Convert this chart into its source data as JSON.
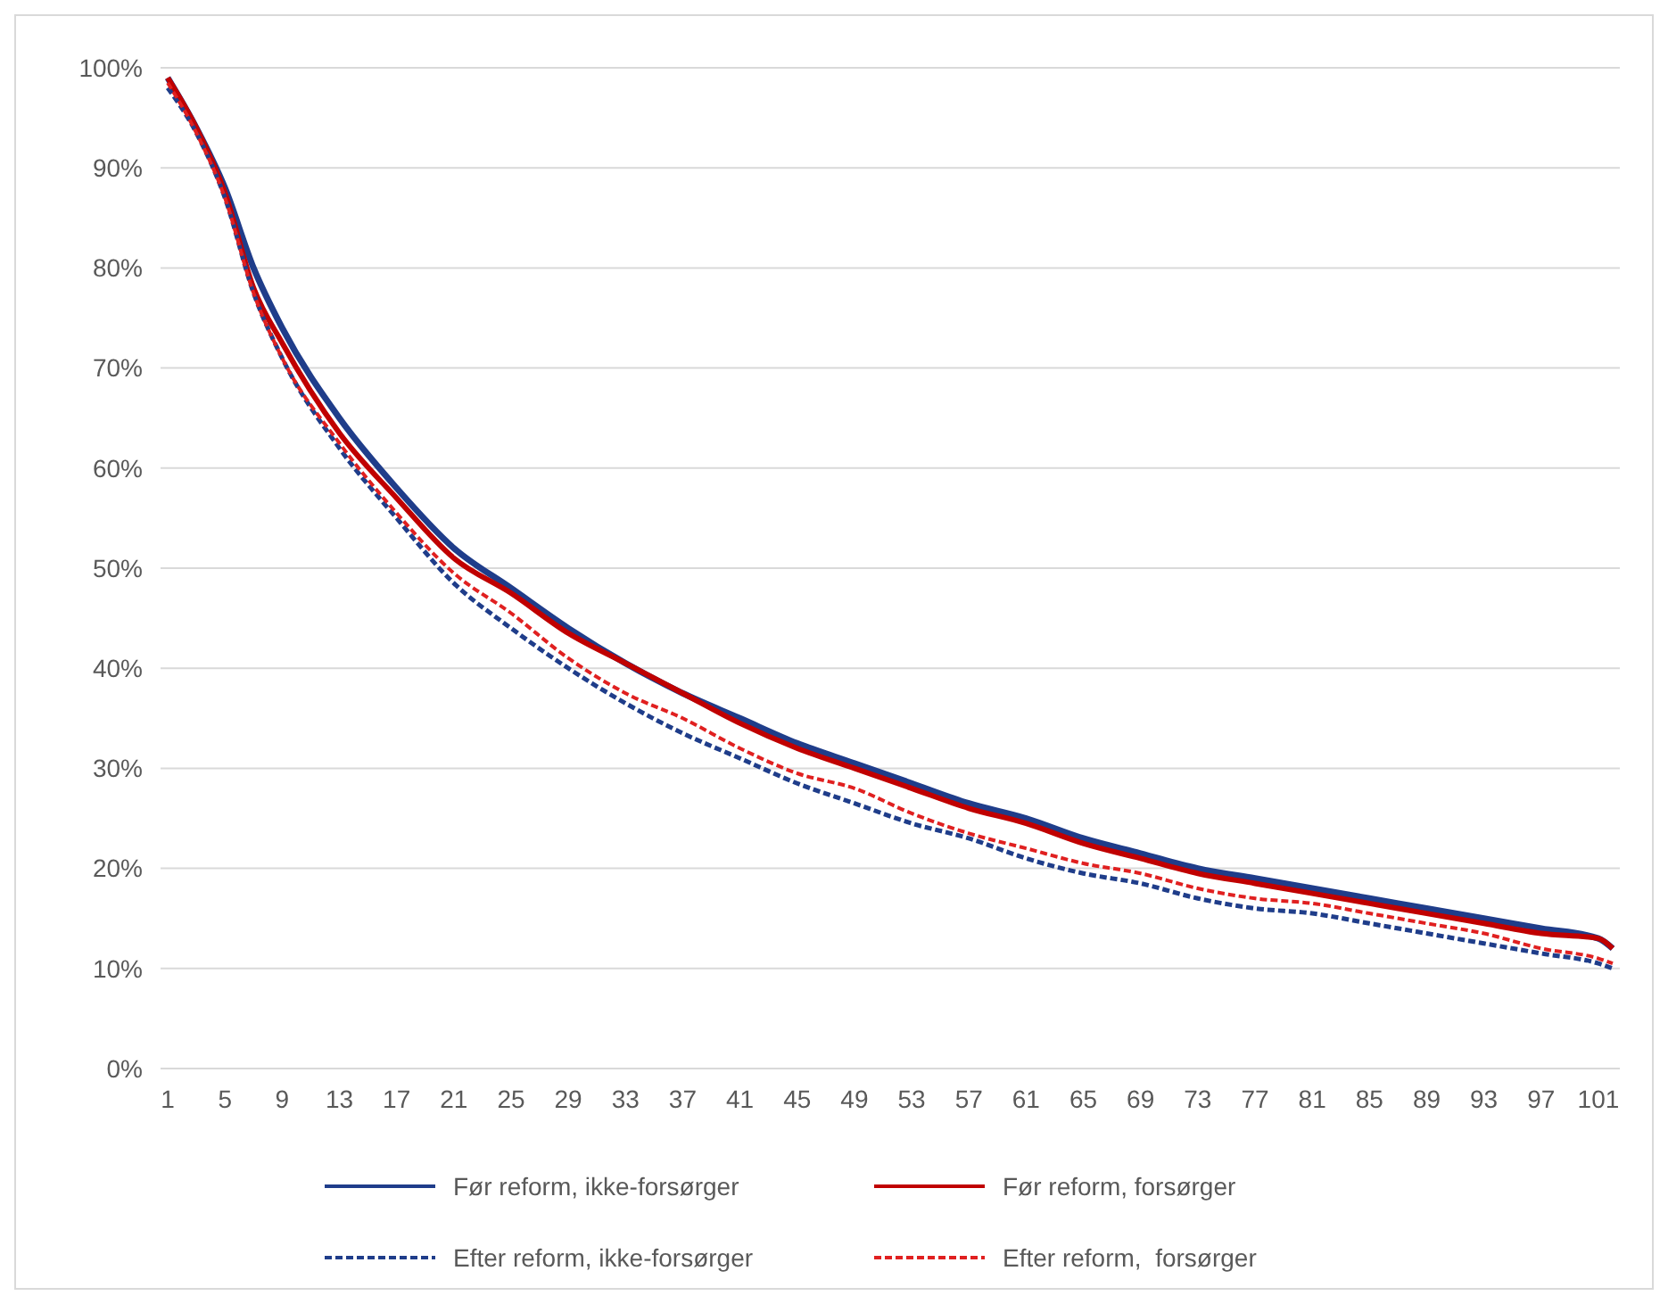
{
  "chart_data": {
    "type": "line",
    "xlim": [
      0.5,
      102.5
    ],
    "xticks": [
      1,
      5,
      9,
      13,
      17,
      21,
      25,
      29,
      33,
      37,
      41,
      45,
      49,
      53,
      57,
      61,
      65,
      69,
      73,
      77,
      81,
      85,
      89,
      93,
      97,
      101
    ],
    "ylim": [
      0,
      100
    ],
    "yticks": [
      {
        "value": 0,
        "label": "0%"
      },
      {
        "value": 10,
        "label": "10%"
      },
      {
        "value": 20,
        "label": "20%"
      },
      {
        "value": 30,
        "label": "30%"
      },
      {
        "value": 40,
        "label": "40%"
      },
      {
        "value": 50,
        "label": "50%"
      },
      {
        "value": 60,
        "label": "60%"
      },
      {
        "value": 70,
        "label": "70%"
      },
      {
        "value": 80,
        "label": "80%"
      },
      {
        "value": 90,
        "label": "90%"
      },
      {
        "value": 100,
        "label": "100%"
      }
    ],
    "grid": "y",
    "legend": "bottom",
    "marker": "none",
    "series": [
      {
        "name": "Før reform, ikke-forsørger",
        "color": "#1f3d8a",
        "line_style": "solid",
        "x": [
          1,
          3,
          5,
          7,
          9,
          13,
          17,
          21,
          25,
          29,
          33,
          37,
          41,
          45,
          49,
          53,
          57,
          61,
          65,
          69,
          73,
          77,
          81,
          85,
          89,
          93,
          97,
          101,
          102
        ],
        "values": [
          99,
          94,
          88,
          80,
          74,
          65,
          58,
          52,
          48,
          44,
          40.5,
          37.5,
          35,
          32.5,
          30.5,
          28.5,
          26.5,
          25,
          23,
          21.5,
          20,
          19,
          18,
          17,
          16,
          15,
          14,
          13,
          12
        ]
      },
      {
        "name": "Før reform, forsørger",
        "color": "#c00000",
        "line_style": "solid",
        "x": [
          1,
          3,
          5,
          7,
          9,
          13,
          17,
          21,
          25,
          29,
          33,
          37,
          41,
          45,
          49,
          53,
          57,
          61,
          65,
          69,
          73,
          77,
          81,
          85,
          89,
          93,
          97,
          101,
          102
        ],
        "values": [
          99,
          94,
          87.5,
          78,
          72.5,
          63.5,
          57,
          51,
          47.5,
          43.5,
          40.5,
          37.5,
          34.5,
          32,
          30,
          28,
          26,
          24.5,
          22.5,
          21,
          19.5,
          18.5,
          17.5,
          16.5,
          15.5,
          14.5,
          13.5,
          13,
          12
        ]
      },
      {
        "name": "Efter reform, ikke-forsørger",
        "color": "#1f3d8a",
        "line_style": "dashed",
        "x": [
          1,
          3,
          5,
          7,
          9,
          13,
          17,
          21,
          25,
          29,
          33,
          37,
          41,
          45,
          49,
          53,
          57,
          61,
          65,
          69,
          73,
          77,
          81,
          85,
          89,
          93,
          97,
          101,
          102
        ],
        "values": [
          98,
          93.5,
          87,
          77.5,
          71,
          62,
          55,
          48.5,
          44,
          40,
          36.5,
          33.5,
          31,
          28.5,
          26.5,
          24.5,
          23,
          21,
          19.5,
          18.5,
          17,
          16,
          15.5,
          14.5,
          13.5,
          12.5,
          11.5,
          10.5,
          10
        ]
      },
      {
        "name": "Efter reform,  forsørger",
        "color": "#e02020",
        "line_style": "dashed",
        "x": [
          1,
          3,
          5,
          7,
          9,
          13,
          17,
          21,
          25,
          29,
          33,
          37,
          41,
          45,
          49,
          53,
          57,
          61,
          65,
          69,
          73,
          77,
          81,
          85,
          89,
          93,
          97,
          101,
          102
        ],
        "values": [
          98.5,
          93.5,
          87,
          77.5,
          71,
          62.5,
          55.5,
          49.5,
          45.5,
          41,
          37.5,
          35,
          32,
          29.5,
          28,
          25.5,
          23.5,
          22,
          20.5,
          19.5,
          18,
          17,
          16.5,
          15.5,
          14.5,
          13.5,
          12,
          11,
          10.5
        ]
      }
    ]
  }
}
